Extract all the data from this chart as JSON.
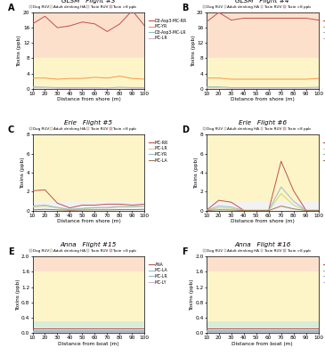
{
  "x": [
    10,
    20,
    30,
    40,
    50,
    60,
    70,
    80,
    90,
    100
  ],
  "panels": [
    {
      "label": "A",
      "title": "GLSM   Flight #3",
      "xlabel": "Distance from shore (m)",
      "ylim": [
        0,
        20
      ],
      "yticks": [
        0,
        4,
        8,
        12,
        16,
        20
      ],
      "series": {
        "D3-Asp3-MC-RR": [
          17.0,
          19.0,
          16.0,
          16.5,
          17.5,
          17.0,
          15.0,
          17.0,
          20.5,
          16.5
        ],
        "MC-YR": [
          2.8,
          2.8,
          2.5,
          2.7,
          2.7,
          3.0,
          2.8,
          3.3,
          2.7,
          2.5
        ],
        "D3-Asp3-MC-LR": [
          0.5,
          0.4,
          0.3,
          0.3,
          0.3,
          0.3,
          0.2,
          0.4,
          0.3,
          0.3
        ],
        "MC-LR": [
          0.2,
          0.2,
          0.1,
          0.1,
          0.1,
          0.1,
          0.1,
          0.2,
          0.1,
          0.1
        ]
      },
      "colors": {
        "D3-Asp3-MC-RR": "#c0504d",
        "MC-YR": "#f79646",
        "D3-Asp3-MC-LR": "#9bbbc0",
        "MC-LR": "#c8b8d8"
      },
      "thresholds": [
        8.0,
        20.0
      ],
      "bands": [
        {
          "ymin": 0,
          "ymax": 8.0,
          "color": "#fdf5c8"
        },
        {
          "ymin": 8.0,
          "ymax": 20.0,
          "color": "#fce0cc"
        }
      ]
    },
    {
      "label": "B",
      "title": "GLSM   Flight #4",
      "xlabel": "Distance from shore (m)",
      "ylim": [
        0,
        20
      ],
      "yticks": [
        0,
        4,
        8,
        12,
        16,
        20
      ],
      "series": {
        "D3-Asp3-MC-RR": [
          17.5,
          20.0,
          18.0,
          18.5,
          18.5,
          18.5,
          18.5,
          18.5,
          18.5,
          18.0
        ],
        "MC-YR": [
          2.8,
          2.8,
          2.5,
          2.5,
          2.5,
          2.5,
          2.5,
          2.5,
          2.5,
          2.7
        ],
        "D3-Asp3-MC-LR": [
          0.5,
          0.5,
          0.3,
          0.3,
          0.3,
          0.3,
          0.3,
          0.3,
          0.3,
          0.4
        ],
        "MC-LR": [
          0.2,
          0.2,
          0.1,
          0.1,
          0.1,
          0.1,
          0.1,
          0.1,
          0.1,
          0.1
        ]
      },
      "colors": {
        "D3-Asp3-MC-RR": "#c0504d",
        "MC-YR": "#f79646",
        "D3-Asp3-MC-LR": "#9bbbc0",
        "MC-LR": "#c8b8d8"
      },
      "thresholds": [
        8.0,
        20.0
      ],
      "bands": [
        {
          "ymin": 0,
          "ymax": 8.0,
          "color": "#fdf5c8"
        },
        {
          "ymin": 8.0,
          "ymax": 20.0,
          "color": "#fce0cc"
        }
      ]
    },
    {
      "label": "C",
      "title": "Erie   Flight #5",
      "xlabel": "Distance from shore (m)",
      "ylim": [
        0,
        8
      ],
      "yticks": [
        0,
        2,
        4,
        6,
        8
      ],
      "series": {
        "MC-RR": [
          2.1,
          2.2,
          0.8,
          0.3,
          0.6,
          0.6,
          0.7,
          0.7,
          0.6,
          0.7
        ],
        "MC-LR": [
          0.4,
          0.5,
          0.3,
          0.1,
          0.2,
          0.3,
          0.3,
          0.4,
          0.4,
          0.5
        ],
        "MC-YR": [
          0.5,
          0.6,
          0.35,
          0.15,
          0.25,
          0.35,
          0.35,
          0.45,
          0.45,
          0.5
        ],
        "MC-LA": [
          0.1,
          0.15,
          0.1,
          0.05,
          0.08,
          0.1,
          0.1,
          0.12,
          0.12,
          0.15
        ]
      },
      "colors": {
        "MC-RR": "#c0504d",
        "MC-LR": "#c8d87c",
        "MC-YR": "#9bbbc0",
        "MC-LA": "#a07850"
      },
      "thresholds": [
        1.0,
        8.0
      ],
      "bands": [
        {
          "ymin": 0,
          "ymax": 1.0,
          "color": "#f2f2f2"
        },
        {
          "ymin": 1.0,
          "ymax": 8.0,
          "color": "#fdf5c8"
        }
      ]
    },
    {
      "label": "D",
      "title": "Erie   Flight #6",
      "xlabel": "Distance from shore (m)",
      "ylim": [
        0,
        8
      ],
      "yticks": [
        0,
        2,
        4,
        6,
        8
      ],
      "series": {
        "MC-RR": [
          0.05,
          1.1,
          0.9,
          0.05,
          0.05,
          0.05,
          5.2,
          2.1,
          0.05,
          0.05
        ],
        "MC-LR": [
          0.03,
          0.3,
          0.25,
          0.03,
          0.03,
          0.03,
          1.8,
          0.6,
          0.03,
          0.03
        ],
        "MC-YR": [
          0.04,
          0.5,
          0.4,
          0.04,
          0.04,
          0.04,
          2.5,
          1.0,
          0.04,
          0.04
        ],
        "MC-LA": [
          0.02,
          0.1,
          0.08,
          0.02,
          0.02,
          0.02,
          0.5,
          0.2,
          0.02,
          0.02
        ]
      },
      "colors": {
        "MC-RR": "#c0504d",
        "MC-LR": "#c8d87c",
        "MC-YR": "#9bbbc0",
        "MC-LA": "#a07850"
      },
      "thresholds": [
        1.0,
        8.0
      ],
      "bands": [
        {
          "ymin": 0,
          "ymax": 1.0,
          "color": "#f2f2f2"
        },
        {
          "ymin": 1.0,
          "ymax": 8.0,
          "color": "#fdf5c8"
        }
      ]
    },
    {
      "label": "E",
      "title": "Anna   Flight #15",
      "xlabel": "Distance from boat (m)",
      "ylim": [
        0.0,
        2.0
      ],
      "yticks": [
        0.0,
        0.4,
        0.8,
        1.2,
        1.6,
        2.0
      ],
      "series": {
        "ANA": [
          0.12,
          0.12,
          0.12,
          0.12,
          0.12,
          0.12,
          0.12,
          0.12,
          0.12,
          0.12
        ],
        "MC-LA": [
          0.08,
          0.08,
          0.08,
          0.08,
          0.08,
          0.08,
          0.08,
          0.08,
          0.08,
          0.08
        ],
        "MC-LR": [
          0.05,
          0.05,
          0.05,
          0.05,
          0.05,
          0.05,
          0.05,
          0.05,
          0.05,
          0.05
        ],
        "MC-LY": [
          0.03,
          0.03,
          0.03,
          0.03,
          0.03,
          0.03,
          0.03,
          0.03,
          0.03,
          0.03
        ]
      },
      "colors": {
        "ANA": "#c0504d",
        "MC-LA": "#9bbbc0",
        "MC-LR": "#9bbbc0",
        "MC-LY": "#c8b8d8"
      },
      "thresholds": [
        0.3,
        1.6
      ],
      "bands": [
        {
          "ymin": 0.0,
          "ymax": 0.3,
          "color": "#d8ecd8"
        },
        {
          "ymin": 0.3,
          "ymax": 1.6,
          "color": "#fdf5c8"
        },
        {
          "ymin": 1.6,
          "ymax": 2.0,
          "color": "#fce0cc"
        }
      ]
    },
    {
      "label": "F",
      "title": "Anna   Flight #16",
      "xlabel": "Distance from boat (m)",
      "ylim": [
        0.0,
        2.0
      ],
      "yticks": [
        0.0,
        0.4,
        0.8,
        1.2,
        1.6,
        2.0
      ],
      "series": {
        "ANA": [
          0.12,
          0.12,
          0.12,
          0.12,
          0.12,
          0.12,
          0.12,
          0.12,
          0.12,
          0.12
        ],
        "MC-LA": [
          0.08,
          0.08,
          0.08,
          0.08,
          0.08,
          0.08,
          0.08,
          0.08,
          0.08,
          0.08
        ],
        "MC-LR": [
          0.05,
          0.05,
          0.05,
          0.05,
          0.05,
          0.05,
          0.05,
          0.05,
          0.05,
          0.05
        ],
        "MC-LY": [
          0.03,
          0.03,
          0.03,
          0.03,
          0.03,
          0.03,
          0.03,
          0.03,
          0.03,
          0.03
        ]
      },
      "colors": {
        "ANA": "#c0504d",
        "MC-LA": "#9bbbc0",
        "MC-LR": "#9bbbc0",
        "MC-LY": "#c8b8d8"
      },
      "thresholds": [
        0.3,
        1.6
      ],
      "bands": [
        {
          "ymin": 0.0,
          "ymax": 0.3,
          "color": "#d8ecd8"
        },
        {
          "ymin": 0.3,
          "ymax": 1.6,
          "color": "#fdf5c8"
        },
        {
          "ymin": 1.6,
          "ymax": 2.0,
          "color": "#fce0cc"
        }
      ]
    }
  ],
  "top_legend_patches": [
    {
      "label": "Dog RUV",
      "color": "#e0e0e0"
    },
    {
      "label": "Adult drinking HA",
      "color": "#fdf5c8"
    },
    {
      "label": "Toxin RUV",
      "color": "#fce0cc"
    },
    {
      "label": "Toxin >8 ppb",
      "color": "#f8b4b2"
    }
  ]
}
